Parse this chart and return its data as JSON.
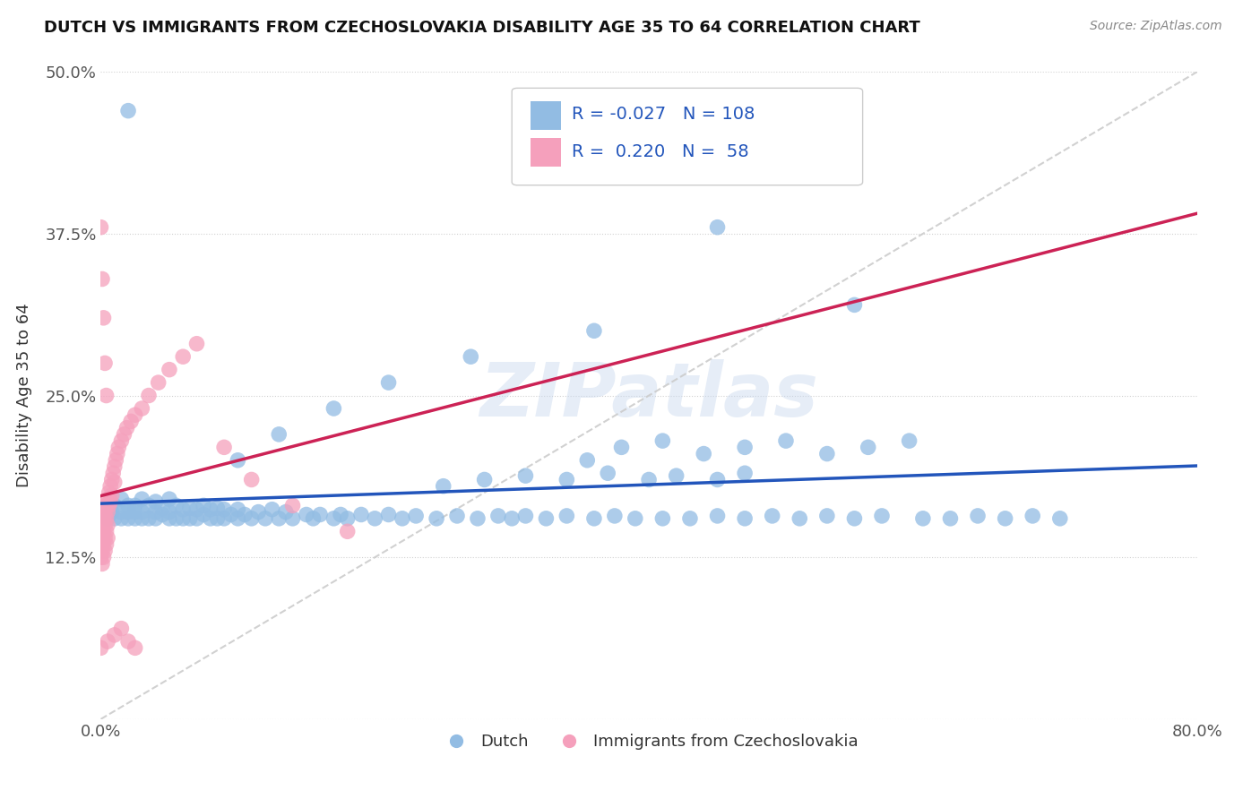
{
  "title": "DUTCH VS IMMIGRANTS FROM CZECHOSLOVAKIA DISABILITY AGE 35 TO 64 CORRELATION CHART",
  "source": "Source: ZipAtlas.com",
  "ylabel": "Disability Age 35 to 64",
  "xlim": [
    0.0,
    0.8
  ],
  "ylim": [
    0.0,
    0.5
  ],
  "xticks": [
    0.0,
    0.2,
    0.4,
    0.6,
    0.8
  ],
  "xticklabels": [
    "0.0%",
    "",
    "",
    "",
    "80.0%"
  ],
  "yticks": [
    0.0,
    0.125,
    0.25,
    0.375,
    0.5
  ],
  "yticklabels": [
    "",
    "12.5%",
    "25.0%",
    "37.5%",
    "50.0%"
  ],
  "r_dutch": -0.027,
  "n_dutch": 108,
  "r_czech": 0.22,
  "n_czech": 58,
  "dutch_color": "#92bce3",
  "czech_color": "#f5a0bc",
  "trendline_dutch_color": "#2255bb",
  "trendline_czech_color": "#cc2255",
  "watermark": "ZIPatlas",
  "dutch_x": [
    0.005,
    0.008,
    0.01,
    0.01,
    0.015,
    0.015,
    0.015,
    0.02,
    0.02,
    0.02,
    0.025,
    0.025,
    0.025,
    0.03,
    0.03,
    0.03,
    0.035,
    0.035,
    0.04,
    0.04,
    0.04,
    0.045,
    0.045,
    0.05,
    0.05,
    0.05,
    0.055,
    0.055,
    0.06,
    0.06,
    0.065,
    0.065,
    0.07,
    0.07,
    0.075,
    0.075,
    0.08,
    0.08,
    0.085,
    0.085,
    0.09,
    0.09,
    0.095,
    0.1,
    0.1,
    0.105,
    0.11,
    0.115,
    0.12,
    0.125,
    0.13,
    0.135,
    0.14,
    0.15,
    0.155,
    0.16,
    0.17,
    0.175,
    0.18,
    0.19,
    0.2,
    0.21,
    0.22,
    0.23,
    0.245,
    0.26,
    0.275,
    0.29,
    0.3,
    0.31,
    0.325,
    0.34,
    0.36,
    0.375,
    0.39,
    0.41,
    0.43,
    0.45,
    0.47,
    0.49,
    0.51,
    0.53,
    0.55,
    0.57,
    0.6,
    0.62,
    0.64,
    0.66,
    0.68,
    0.7,
    0.355,
    0.38,
    0.41,
    0.44,
    0.47,
    0.5,
    0.53,
    0.56,
    0.59,
    0.25,
    0.28,
    0.31,
    0.34,
    0.37,
    0.4,
    0.42,
    0.45,
    0.47
  ],
  "dutch_y": [
    0.155,
    0.16,
    0.155,
    0.165,
    0.155,
    0.16,
    0.17,
    0.155,
    0.16,
    0.165,
    0.155,
    0.16,
    0.165,
    0.155,
    0.16,
    0.17,
    0.155,
    0.165,
    0.155,
    0.16,
    0.168,
    0.158,
    0.163,
    0.155,
    0.16,
    0.17,
    0.155,
    0.165,
    0.155,
    0.162,
    0.155,
    0.163,
    0.155,
    0.162,
    0.158,
    0.165,
    0.155,
    0.162,
    0.155,
    0.163,
    0.155,
    0.162,
    0.158,
    0.155,
    0.162,
    0.158,
    0.155,
    0.16,
    0.155,
    0.162,
    0.155,
    0.16,
    0.155,
    0.158,
    0.155,
    0.158,
    0.155,
    0.158,
    0.155,
    0.158,
    0.155,
    0.158,
    0.155,
    0.157,
    0.155,
    0.157,
    0.155,
    0.157,
    0.155,
    0.157,
    0.155,
    0.157,
    0.155,
    0.157,
    0.155,
    0.155,
    0.155,
    0.157,
    0.155,
    0.157,
    0.155,
    0.157,
    0.155,
    0.157,
    0.155,
    0.155,
    0.157,
    0.155,
    0.157,
    0.155,
    0.2,
    0.21,
    0.215,
    0.205,
    0.21,
    0.215,
    0.205,
    0.21,
    0.215,
    0.18,
    0.185,
    0.188,
    0.185,
    0.19,
    0.185,
    0.188,
    0.185,
    0.19
  ],
  "dutch_y_outlier": [
    0.47,
    0.38,
    0.32,
    0.3,
    0.28,
    0.26,
    0.24,
    0.22,
    0.2
  ],
  "dutch_x_outlier": [
    0.02,
    0.45,
    0.55,
    0.36,
    0.27,
    0.21,
    0.17,
    0.13,
    0.1
  ],
  "czech_x": [
    0.0,
    0.0,
    0.0,
    0.0,
    0.0,
    0.001,
    0.001,
    0.001,
    0.001,
    0.001,
    0.002,
    0.002,
    0.002,
    0.002,
    0.003,
    0.003,
    0.003,
    0.003,
    0.004,
    0.004,
    0.004,
    0.004,
    0.005,
    0.005,
    0.005,
    0.005,
    0.006,
    0.006,
    0.007,
    0.007,
    0.008,
    0.008,
    0.009,
    0.01,
    0.01,
    0.011,
    0.012,
    0.013,
    0.015,
    0.017,
    0.019,
    0.022,
    0.025,
    0.03,
    0.035,
    0.042,
    0.05,
    0.06,
    0.07,
    0.09,
    0.11,
    0.14,
    0.18,
    0.0,
    0.001,
    0.002,
    0.003,
    0.004
  ],
  "czech_y": [
    0.155,
    0.145,
    0.165,
    0.135,
    0.125,
    0.16,
    0.15,
    0.14,
    0.13,
    0.12,
    0.155,
    0.145,
    0.135,
    0.125,
    0.16,
    0.15,
    0.14,
    0.13,
    0.165,
    0.155,
    0.145,
    0.135,
    0.17,
    0.16,
    0.15,
    0.14,
    0.175,
    0.165,
    0.18,
    0.168,
    0.185,
    0.173,
    0.19,
    0.195,
    0.183,
    0.2,
    0.205,
    0.21,
    0.215,
    0.22,
    0.225,
    0.23,
    0.235,
    0.24,
    0.25,
    0.26,
    0.27,
    0.28,
    0.29,
    0.21,
    0.185,
    0.165,
    0.145,
    0.38,
    0.34,
    0.31,
    0.275,
    0.25
  ],
  "czech_x_outlier": [
    0.0,
    0.005,
    0.01,
    0.015,
    0.02,
    0.025
  ],
  "czech_y_outlier": [
    0.055,
    0.06,
    0.065,
    0.07,
    0.06,
    0.055
  ]
}
